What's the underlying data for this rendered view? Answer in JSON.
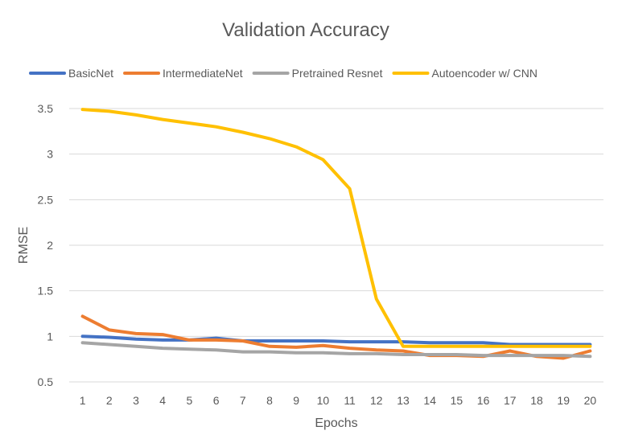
{
  "chart_data": {
    "type": "line",
    "title": "Validation Accuracy",
    "xlabel": "Epochs",
    "ylabel": "RMSE",
    "x": [
      1,
      2,
      3,
      4,
      5,
      6,
      7,
      8,
      9,
      10,
      11,
      12,
      13,
      14,
      15,
      16,
      17,
      18,
      19,
      20
    ],
    "x_tick_labels": [
      "1",
      "2",
      "3",
      "4",
      "5",
      "6",
      "7",
      "8",
      "9",
      "10",
      "11",
      "12",
      "13",
      "14",
      "15",
      "16",
      "17",
      "18",
      "19",
      "20"
    ],
    "ylim": [
      0.5,
      3.5
    ],
    "y_ticks": [
      0.5,
      1,
      1.5,
      2,
      2.5,
      3,
      3.5
    ],
    "y_tick_labels": [
      "0.5",
      "1",
      "1.5",
      "2",
      "2.5",
      "3",
      "3.5"
    ],
    "grid": "horizontal",
    "legend_position": "top",
    "series": [
      {
        "name": "BasicNet",
        "color": "#4472c4",
        "values": [
          1.0,
          0.99,
          0.97,
          0.96,
          0.96,
          0.98,
          0.95,
          0.95,
          0.95,
          0.95,
          0.94,
          0.94,
          0.94,
          0.93,
          0.93,
          0.93,
          0.91,
          0.91,
          0.91,
          0.91
        ]
      },
      {
        "name": "IntermediateNet",
        "color": "#ed7d31",
        "values": [
          1.22,
          1.07,
          1.03,
          1.02,
          0.96,
          0.96,
          0.95,
          0.89,
          0.88,
          0.9,
          0.87,
          0.85,
          0.84,
          0.79,
          0.79,
          0.78,
          0.84,
          0.78,
          0.76,
          0.84
        ]
      },
      {
        "name": "Pretrained Resnet",
        "color": "#a5a5a5",
        "values": [
          0.93,
          0.91,
          0.89,
          0.87,
          0.86,
          0.85,
          0.83,
          0.83,
          0.82,
          0.82,
          0.81,
          0.81,
          0.8,
          0.8,
          0.8,
          0.79,
          0.79,
          0.79,
          0.79,
          0.78
        ]
      },
      {
        "name": "Autoencoder w/ CNN",
        "color": "#ffc000",
        "values": [
          3.49,
          3.47,
          3.43,
          3.38,
          3.34,
          3.3,
          3.24,
          3.17,
          3.08,
          2.94,
          2.62,
          1.41,
          0.89,
          0.89,
          0.89,
          0.89,
          0.89,
          0.89,
          0.89,
          0.89
        ]
      }
    ]
  }
}
